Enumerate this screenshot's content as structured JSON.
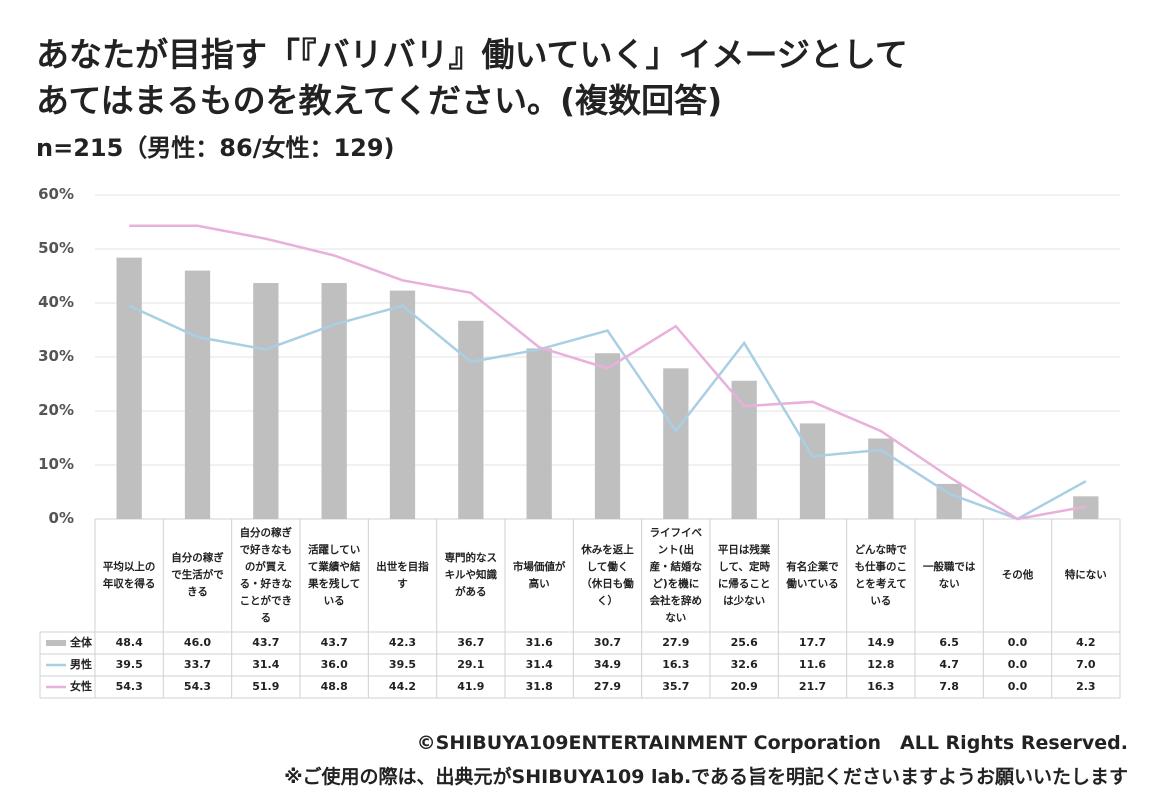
{
  "chart_data": {
    "type": "bar-line-table",
    "title": [
      "あなたが目指す「『バリバリ』働いていく」イメージとして",
      "あてはまるものを教えてください。(複数回答)"
    ],
    "subtitle": "n=215（男性：86/女性：129)",
    "categories": [
      "平均以上の年収を得る",
      "自分の稼ぎで生活ができる",
      "自分の稼ぎで好きなものが買える・好きなことができる",
      "活躍していて業績や結果を残している",
      "出世を目指す",
      "専門的なスキルや知識がある",
      "市場価値が高い",
      "休みを返上して働く（休日も働く）",
      "ライフイベント(出産・結婚など)を機に会社を辞めない",
      "平日は残業して、定時に帰ることは少ない",
      "有名企業で働いている",
      "どんな時でも仕事のことを考えている",
      "一般職ではない",
      "その他",
      "特にない"
    ],
    "series": [
      {
        "name": "全体",
        "kind": "bar",
        "color": "#bfbfbf",
        "values": [
          48.4,
          46.0,
          43.7,
          43.7,
          42.3,
          36.7,
          31.6,
          30.7,
          27.9,
          25.6,
          17.7,
          14.9,
          6.5,
          0.0,
          4.2
        ],
        "value_labels": [
          "48.4",
          "46.0",
          "43.7",
          "43.7",
          "42.3",
          "36.7",
          "31.6",
          "30.7",
          "27.9",
          "25.6",
          "17.7",
          "14.9",
          "6.5",
          "0.0",
          "4.2"
        ]
      },
      {
        "name": "男性",
        "kind": "line",
        "color": "#a9cfe4",
        "values": [
          39.5,
          33.7,
          31.4,
          36.0,
          39.5,
          29.1,
          31.4,
          34.9,
          16.3,
          32.6,
          11.6,
          12.8,
          4.7,
          0.0,
          7.0
        ],
        "value_labels": [
          "39.5",
          "33.7",
          "31.4",
          "36.0",
          "39.5",
          "29.1",
          "31.4",
          "34.9",
          "16.3",
          "32.6",
          "11.6",
          "12.8",
          "4.7",
          "0.0",
          "7.0"
        ]
      },
      {
        "name": "女性",
        "kind": "line",
        "color": "#e8b0da",
        "values": [
          54.3,
          54.3,
          51.9,
          48.8,
          44.2,
          41.9,
          31.8,
          27.9,
          35.7,
          20.9,
          21.7,
          16.3,
          7.8,
          0.0,
          2.3
        ],
        "value_labels": [
          "54.3",
          "54.3",
          "51.9",
          "48.8",
          "44.2",
          "41.9",
          "31.8",
          "27.9",
          "35.7",
          "20.9",
          "21.7",
          "16.3",
          "7.8",
          "0.0",
          "2.3"
        ]
      }
    ],
    "ylim": [
      0,
      60
    ],
    "yticks": [
      {
        "value": 0,
        "label": "0%"
      },
      {
        "value": 10,
        "label": "10%"
      },
      {
        "value": 20,
        "label": "20%"
      },
      {
        "value": 30,
        "label": "30%"
      },
      {
        "value": 40,
        "label": "40%"
      },
      {
        "value": 50,
        "label": "50%"
      },
      {
        "value": 60,
        "label": "60%"
      }
    ],
    "grid": true,
    "footer": [
      "©SHIBUYA109ENTERTAINMENT Corporation　ALL Rights Reserved.",
      "※ご使用の際は、出典元がSHIBUYA109 lab.である旨を明記くださいますようお願いいたします"
    ]
  }
}
